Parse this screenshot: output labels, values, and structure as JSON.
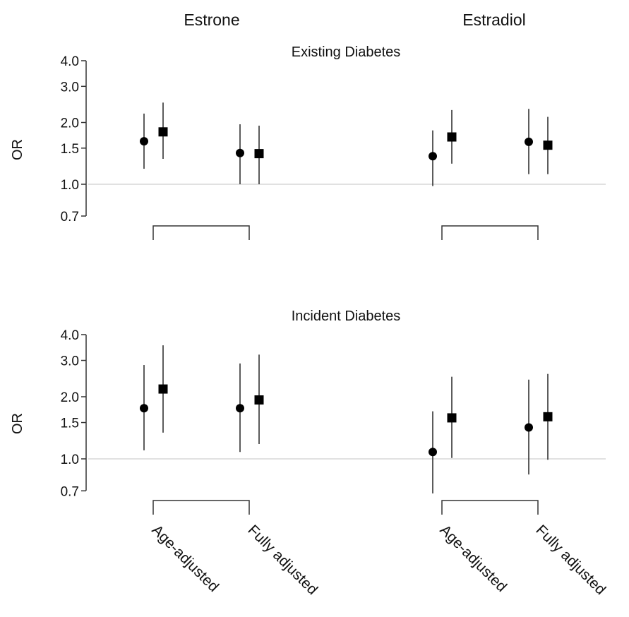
{
  "chart_data": [
    {
      "type": "scatter",
      "title": "Existing Diabetes",
      "ylabel": "OR",
      "yscale": "log",
      "ylim": [
        0.7,
        4.0
      ],
      "yticks": [
        "0.7",
        "1.0",
        "1.5",
        "2.0",
        "3.0",
        "4.0"
      ],
      "groups": [
        "Estrone",
        "Estradiol"
      ],
      "categories": [
        "Age-adjusted",
        "Fully adjusted"
      ],
      "reference_line": 1.0,
      "points": [
        {
          "group": "Estrone",
          "category": "Age-adjusted",
          "marker": "circle",
          "or": 1.62,
          "lower": 1.19,
          "upper": 2.21
        },
        {
          "group": "Estrone",
          "category": "Age-adjusted",
          "marker": "square",
          "or": 1.8,
          "lower": 1.33,
          "upper": 2.5
        },
        {
          "group": "Estrone",
          "category": "Fully adjusted",
          "marker": "circle",
          "or": 1.42,
          "lower": 1.0,
          "upper": 1.96
        },
        {
          "group": "Estrone",
          "category": "Fully adjusted",
          "marker": "square",
          "or": 1.41,
          "lower": 1.0,
          "upper": 1.93
        },
        {
          "group": "Estradiol",
          "category": "Age-adjusted",
          "marker": "circle",
          "or": 1.37,
          "lower": 0.98,
          "upper": 1.83
        },
        {
          "group": "Estradiol",
          "category": "Age-adjusted",
          "marker": "square",
          "or": 1.7,
          "lower": 1.26,
          "upper": 2.3
        },
        {
          "group": "Estradiol",
          "category": "Fully adjusted",
          "marker": "circle",
          "or": 1.61,
          "lower": 1.12,
          "upper": 2.33
        },
        {
          "group": "Estradiol",
          "category": "Fully adjusted",
          "marker": "square",
          "or": 1.55,
          "lower": 1.12,
          "upper": 2.13
        }
      ]
    },
    {
      "type": "scatter",
      "title": "Incident Diabetes",
      "ylabel": "OR",
      "yscale": "log",
      "ylim": [
        0.7,
        4.0
      ],
      "yticks": [
        "0.7",
        "1.0",
        "1.5",
        "2.0",
        "3.0",
        "4.0"
      ],
      "groups": [
        "Estrone",
        "Estradiol"
      ],
      "categories": [
        "Age-adjusted",
        "Fully adjusted"
      ],
      "reference_line": 1.0,
      "points": [
        {
          "group": "Estrone",
          "category": "Age-adjusted",
          "marker": "circle",
          "or": 1.76,
          "lower": 1.1,
          "upper": 2.85
        },
        {
          "group": "Estrone",
          "category": "Age-adjusted",
          "marker": "square",
          "or": 2.18,
          "lower": 1.34,
          "upper": 3.55
        },
        {
          "group": "Estrone",
          "category": "Fully adjusted",
          "marker": "circle",
          "or": 1.76,
          "lower": 1.08,
          "upper": 2.9
        },
        {
          "group": "Estrone",
          "category": "Fully adjusted",
          "marker": "square",
          "or": 1.93,
          "lower": 1.18,
          "upper": 3.2
        },
        {
          "group": "Estradiol",
          "category": "Age-adjusted",
          "marker": "circle",
          "or": 1.08,
          "lower": 0.68,
          "upper": 1.7
        },
        {
          "group": "Estradiol",
          "category": "Age-adjusted",
          "marker": "square",
          "or": 1.58,
          "lower": 1.01,
          "upper": 2.5
        },
        {
          "group": "Estradiol",
          "category": "Fully adjusted",
          "marker": "circle",
          "or": 1.42,
          "lower": 0.84,
          "upper": 2.42
        },
        {
          "group": "Estradiol",
          "category": "Fully adjusted",
          "marker": "square",
          "or": 1.6,
          "lower": 0.99,
          "upper": 2.58
        }
      ]
    }
  ]
}
